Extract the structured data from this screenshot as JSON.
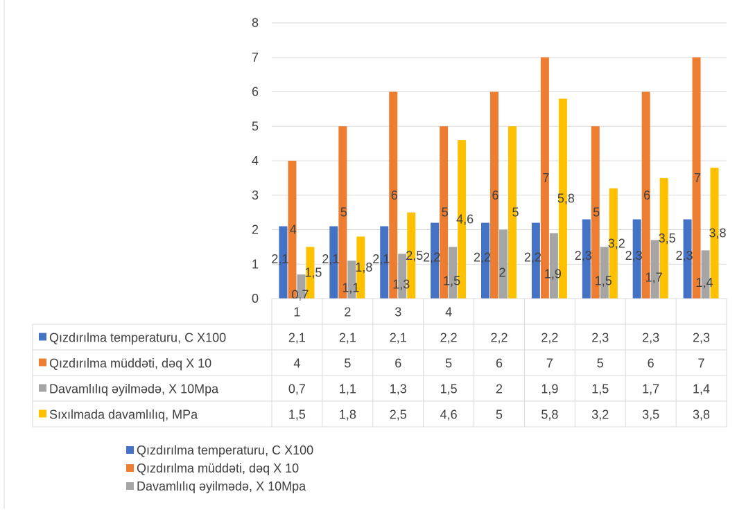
{
  "chart_data": {
    "type": "bar",
    "title": "",
    "xlabel": "",
    "ylabel": "",
    "ylim": [
      0,
      8
    ],
    "yticks": [
      "0",
      "1",
      "2",
      "3",
      "4",
      "5",
      "6",
      "7",
      "8"
    ],
    "grid": true,
    "categories": [
      "1",
      "2",
      "3",
      "4",
      "",
      "",
      "",
      "",
      ""
    ],
    "series": [
      {
        "name": "Qızdırılma temperaturu, C X100",
        "color": "#4472c4",
        "values": [
          2.1,
          2.1,
          2.1,
          2.2,
          2.2,
          2.2,
          2.3,
          2.3,
          2.3
        ],
        "labels": [
          "2,1",
          "2,1",
          "2,1",
          "2,2",
          "2,2",
          "2,2",
          "2,3",
          "2,3",
          "2,3"
        ]
      },
      {
        "name": "Qızdırılma müddəti, dəq X 10",
        "color": "#ed7d31",
        "values": [
          4,
          5,
          6,
          5,
          6,
          7,
          5,
          6,
          7
        ],
        "labels": [
          "4",
          "5",
          "6",
          "5",
          "6",
          "7",
          "5",
          "6",
          "7"
        ]
      },
      {
        "name": "Davamlılıq əyilmədə,  X 10Mpa",
        "color": "#a5a5a5",
        "values": [
          0.7,
          1.1,
          1.3,
          1.5,
          2,
          1.9,
          1.5,
          1.7,
          1.4
        ],
        "labels": [
          "0,7",
          "1,1",
          "1,3",
          "1,5",
          "2",
          "1,9",
          "1,5",
          "1,7",
          "1,4"
        ]
      },
      {
        "name": "Sıxılmada davamlılıq, MPa",
        "color": "#ffc000",
        "values": [
          1.5,
          1.8,
          2.5,
          4.6,
          5,
          5.8,
          3.2,
          3.5,
          3.8
        ],
        "labels": [
          "1,5",
          "1,8",
          "2,5",
          "4,6",
          "5",
          "5,8",
          "3,2",
          "3,5",
          "3,8"
        ]
      }
    ],
    "data_table": true,
    "legend": {
      "placement": "bottom",
      "entries": [
        "Qızdırılma temperaturu, C X100",
        "Qızdırılma müddəti, dəq X 10",
        "Davamlılıq əyilmədə,  X 10Mpa"
      ]
    }
  }
}
